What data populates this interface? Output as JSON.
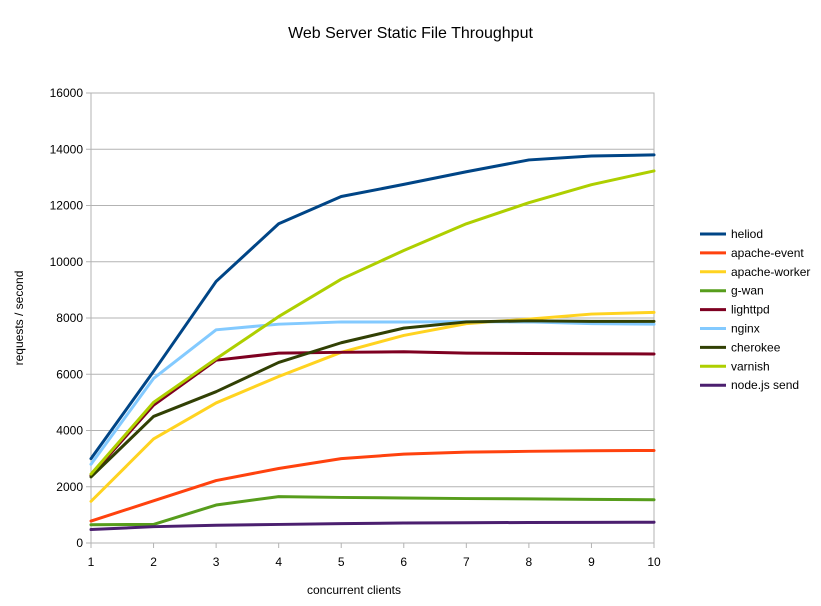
{
  "chart_data": {
    "type": "line",
    "title": "Web Server Static File Throughput",
    "xlabel": "concurrent clients",
    "ylabel": "requests / second",
    "x": [
      1,
      2,
      3,
      4,
      5,
      6,
      7,
      8,
      9,
      10
    ],
    "xlim": [
      1,
      10
    ],
    "ylim": [
      0,
      16000
    ],
    "y_ticks": [
      0,
      2000,
      4000,
      6000,
      8000,
      10000,
      12000,
      14000,
      16000
    ],
    "grid": true,
    "legend_position": "right",
    "series": [
      {
        "name": "heliod",
        "color": "#004586",
        "values": [
          3000,
          6100,
          9300,
          11350,
          12320,
          12750,
          13200,
          13620,
          13760,
          13800
        ]
      },
      {
        "name": "apache-event",
        "color": "#ff420e",
        "values": [
          780,
          1500,
          2220,
          2650,
          3000,
          3160,
          3230,
          3260,
          3280,
          3290
        ]
      },
      {
        "name": "apache-worker",
        "color": "#ffd320",
        "values": [
          1480,
          3700,
          4980,
          5920,
          6780,
          7380,
          7800,
          7960,
          8140,
          8200
        ]
      },
      {
        "name": "g-wan",
        "color": "#579d1c",
        "values": [
          650,
          660,
          1350,
          1650,
          1620,
          1600,
          1580,
          1570,
          1550,
          1540
        ]
      },
      {
        "name": "lighttpd",
        "color": "#7e0021",
        "values": [
          2400,
          4900,
          6500,
          6750,
          6780,
          6800,
          6750,
          6740,
          6730,
          6720
        ]
      },
      {
        "name": "nginx",
        "color": "#83caff",
        "values": [
          2800,
          5850,
          7580,
          7780,
          7860,
          7860,
          7870,
          7860,
          7800,
          7780
        ]
      },
      {
        "name": "cherokee",
        "color": "#314004",
        "values": [
          2350,
          4500,
          5380,
          6420,
          7120,
          7640,
          7860,
          7900,
          7880,
          7880
        ]
      },
      {
        "name": "varnish",
        "color": "#aecf00",
        "values": [
          2450,
          5000,
          6550,
          8050,
          9380,
          10400,
          11350,
          12100,
          12740,
          13230
        ]
      },
      {
        "name": "node.js send",
        "color": "#4b1f6f",
        "values": [
          480,
          580,
          630,
          660,
          690,
          710,
          720,
          730,
          735,
          740
        ]
      }
    ]
  }
}
